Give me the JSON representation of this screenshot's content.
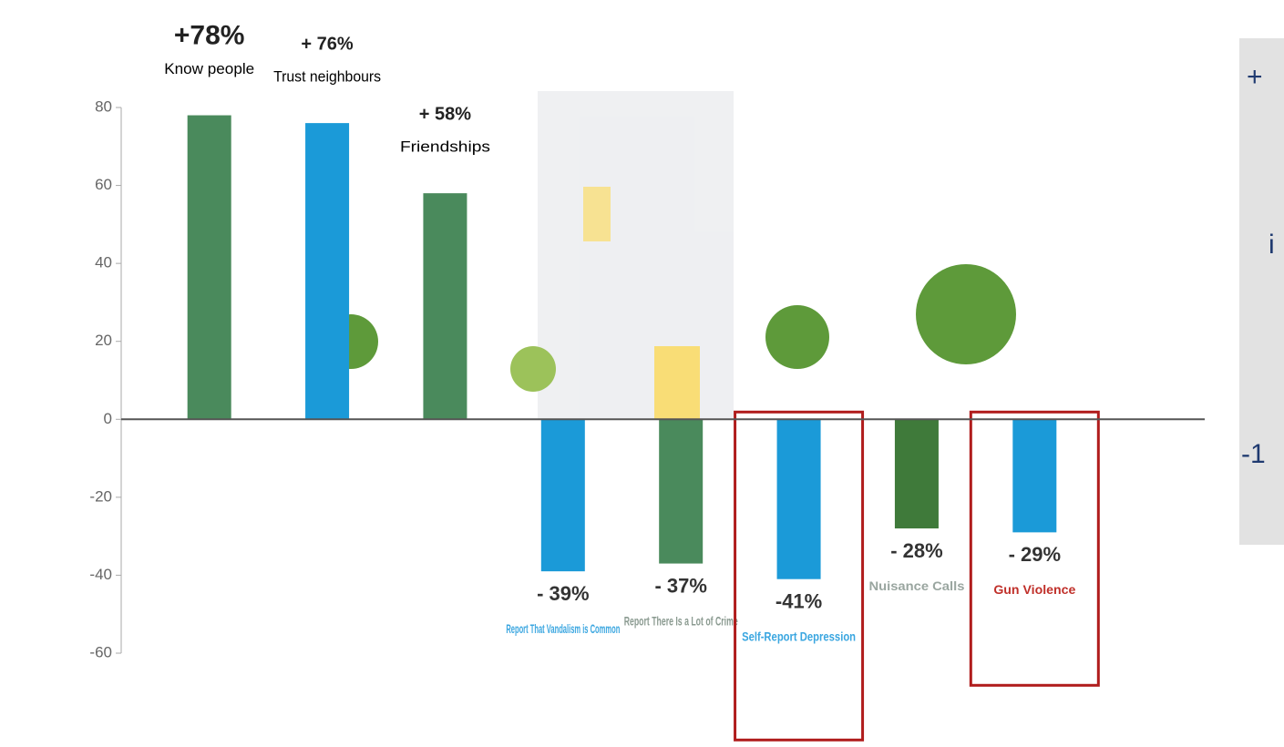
{
  "chart_data": {
    "type": "bar",
    "categories": [
      "Know people",
      "Trust neighbours",
      "Friendships",
      "Report That Vandalism is Common",
      "Report There Is a Lot of Crime",
      "Self-Report Depression",
      "Nuisance Calls",
      "Gun Violence"
    ],
    "values": [
      78,
      76,
      58,
      -39,
      -37,
      -41,
      -28,
      -29
    ],
    "value_labels": [
      "+78%",
      "+ 76%",
      "+ 58%",
      "- 39%",
      "- 37%",
      "-41%",
      "- 28%",
      "- 29%"
    ],
    "colors": [
      "#4a8a5c",
      "#1b9ad8",
      "#4a8a5c",
      "#1b9ad8",
      "#4a8a5c",
      "#1b9ad8",
      "#3f7a3a",
      "#1b9ad8"
    ],
    "label_colors": [
      "#000000",
      "#000000",
      "#000000",
      "#3aa6e0",
      "#8a9a90",
      "#3aa6e0",
      "#9aa6a0",
      "#c0302a"
    ],
    "highlighted": [
      false,
      false,
      false,
      false,
      false,
      true,
      false,
      true
    ],
    "ylim": [
      -60,
      80
    ],
    "yticks": [
      -60,
      -40,
      -20,
      0,
      20,
      40,
      60,
      80
    ]
  },
  "side_panel": {
    "texts": [
      "+",
      "i",
      "-1"
    ]
  }
}
